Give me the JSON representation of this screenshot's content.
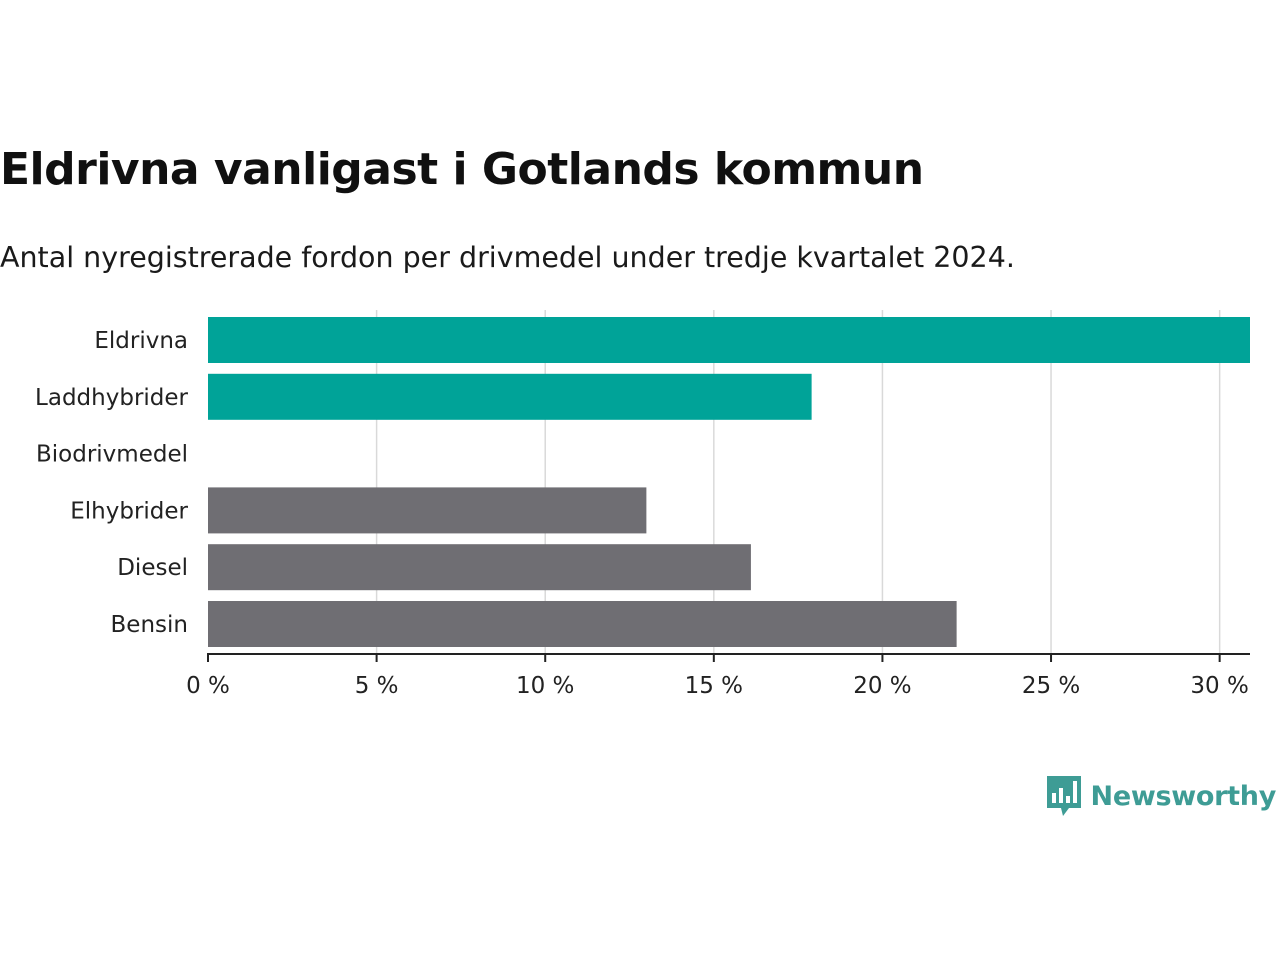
{
  "title": "Eldrivna vanligast i Gotlands kommun",
  "subtitle": "Antal nyregistrerade fordon per drivmedel under tredje kvartalet 2024.",
  "brand": {
    "name": "Newsworthy",
    "logo_icon": "bar-chart-speech-bubble-icon",
    "color": "#3e9c95"
  },
  "colors": {
    "highlight": "#00a398",
    "neutral": "#6f6e73",
    "grid": "#d9d9d9",
    "axis": "#222222"
  },
  "chart_data": {
    "type": "bar",
    "orientation": "horizontal",
    "categories": [
      "Eldrivna",
      "Laddhybrider",
      "Biodrivmedel",
      "Elhybrider",
      "Diesel",
      "Bensin"
    ],
    "values": [
      30.9,
      17.9,
      0,
      13.0,
      16.1,
      22.2
    ],
    "highlighted": [
      true,
      true,
      false,
      false,
      false,
      false
    ],
    "xlim": [
      0,
      30.9
    ],
    "xticks": [
      0,
      5,
      10,
      15,
      20,
      25,
      30
    ],
    "xtick_labels": [
      "0 %",
      "5 %",
      "10 %",
      "15 %",
      "20 %",
      "25 %",
      "30 %"
    ],
    "grid": "vertical",
    "legend": "none"
  }
}
